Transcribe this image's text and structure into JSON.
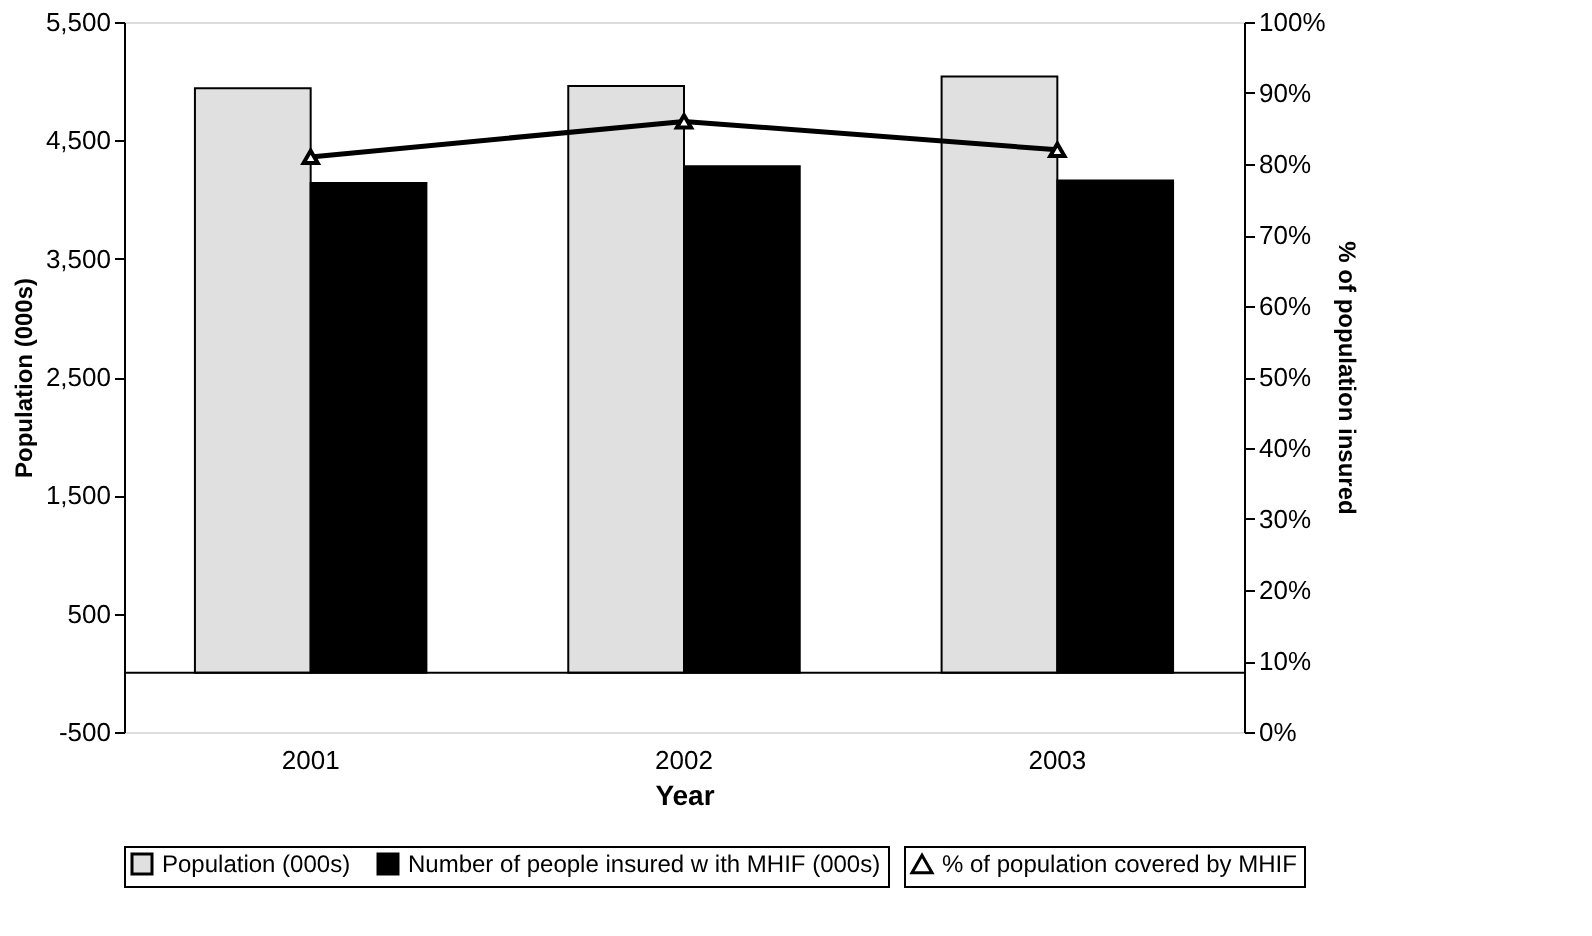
{
  "chart_data": {
    "type": "bar",
    "xlabel": "Year",
    "ylabel": "Population (000s)",
    "y2label": "% of population insured",
    "categories": [
      "2001",
      "2002",
      "2003"
    ],
    "series": [
      {
        "name": "Population (000s)",
        "color": "#e0e0e0",
        "values": [
          4940,
          4960,
          5040
        ]
      },
      {
        "name": "Number of people insured w ith MHIF (000s)",
        "color": "#000000",
        "values": [
          4140,
          4280,
          4160
        ]
      },
      {
        "name": "% of population covered by MHIF",
        "type": "line",
        "axis": "y2",
        "color": "#000000",
        "marker": "triangle",
        "values": [
          81,
          86,
          82
        ]
      }
    ],
    "ylim": [
      -500,
      5500
    ],
    "yticks": [
      {
        "value": -500,
        "label": "-500"
      },
      500,
      {
        "value": 1500,
        "label": "1,500"
      },
      {
        "value": 2500,
        "label": "2,500"
      },
      {
        "value": 3500,
        "label": "3,500"
      },
      {
        "value": 4500,
        "label": "4,500"
      },
      {
        "value": 5500,
        "label": "5,500"
      }
    ],
    "y2lim": [
      0,
      100
    ],
    "y2ticks": [
      {
        "value": 0,
        "label": "0%"
      },
      {
        "value": 10,
        "label": "10%"
      },
      {
        "value": 20,
        "label": "20%"
      },
      {
        "value": 30,
        "label": "30%"
      },
      {
        "value": 40,
        "label": "40%"
      },
      {
        "value": 50,
        "label": "50%"
      },
      {
        "value": 60,
        "label": "60%"
      },
      {
        "value": 70,
        "label": "70%"
      },
      {
        "value": 80,
        "label": "80%"
      },
      {
        "value": 90,
        "label": "90%"
      },
      {
        "value": 100,
        "label": "100%"
      }
    ],
    "ref_lines": [
      {
        "axis": "y",
        "value": 0,
        "color": "#000000"
      }
    ],
    "grid": false,
    "legend": "bottom"
  }
}
